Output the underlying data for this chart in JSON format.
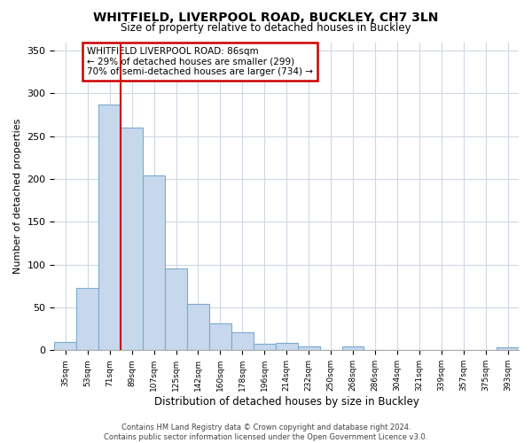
{
  "title": "WHITFIELD, LIVERPOOL ROAD, BUCKLEY, CH7 3LN",
  "subtitle": "Size of property relative to detached houses in Buckley",
  "xlabel": "Distribution of detached houses by size in Buckley",
  "ylabel": "Number of detached properties",
  "footer_line1": "Contains HM Land Registry data © Crown copyright and database right 2024.",
  "footer_line2": "Contains public sector information licensed under the Open Government Licence v3.0.",
  "bin_labels": [
    "35sqm",
    "53sqm",
    "71sqm",
    "89sqm",
    "107sqm",
    "125sqm",
    "142sqm",
    "160sqm",
    "178sqm",
    "196sqm",
    "214sqm",
    "232sqm",
    "250sqm",
    "268sqm",
    "286sqm",
    "304sqm",
    "321sqm",
    "339sqm",
    "357sqm",
    "375sqm",
    "393sqm"
  ],
  "bin_values": [
    10,
    73,
    287,
    260,
    204,
    96,
    54,
    31,
    21,
    8,
    9,
    4,
    0,
    4,
    0,
    0,
    0,
    0,
    0,
    0,
    3
  ],
  "bar_color": "#c8d8ec",
  "bar_edgecolor": "#7aaad0",
  "vline_color": "#cc0000",
  "annotation_text": "WHITFIELD LIVERPOOL ROAD: 86sqm\n← 29% of detached houses are smaller (299)\n70% of semi-detached houses are larger (734) →",
  "annotation_box_facecolor": "#ffffff",
  "annotation_box_edgecolor": "#cc0000",
  "ylim": [
    0,
    360
  ],
  "yticks": [
    0,
    50,
    100,
    150,
    200,
    250,
    300,
    350
  ],
  "grid_color": "#d0d8e4",
  "bg_color": "#ffffff",
  "vline_bin_index": 3,
  "title_fontsize": 10,
  "subtitle_fontsize": 8.5,
  "footer_fontsize": 6
}
